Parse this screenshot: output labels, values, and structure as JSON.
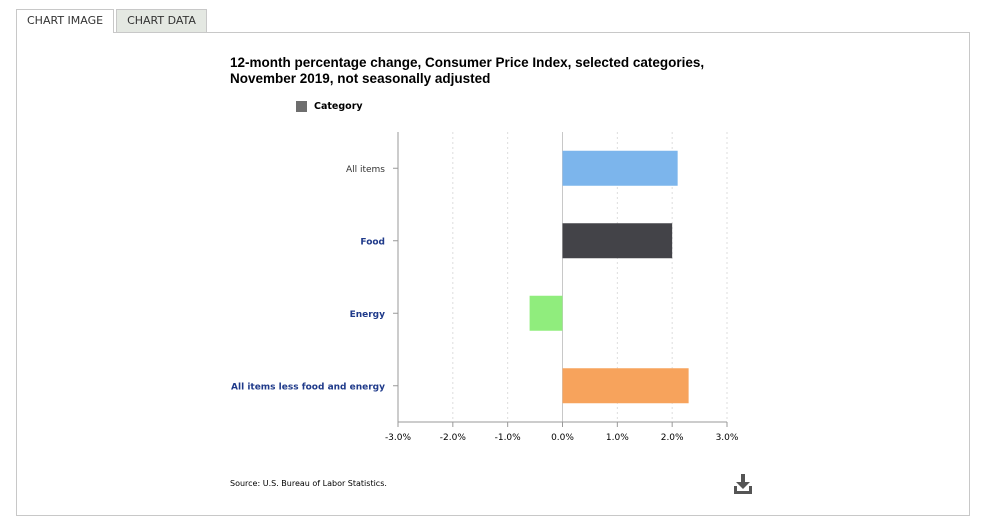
{
  "tabs": [
    {
      "label": "CHART IMAGE"
    },
    {
      "label": "CHART DATA"
    }
  ],
  "source": "Source: U.S. Bureau of Labor Statistics.",
  "legend": {
    "label": "Category",
    "color": "#6e6e6e"
  },
  "chart_data": {
    "type": "bar",
    "orientation": "horizontal",
    "title": "12-month percentage change, Consumer Price Index, selected categories, November 2019, not seasonally adjusted",
    "categories": [
      "All items",
      "Food",
      "Energy",
      "All items less food and energy"
    ],
    "category_colors": [
      "#7cb5ec",
      "#434348",
      "#90ed7d",
      "#f7a35c"
    ],
    "category_label_colors": [
      "#333333",
      "#1f3a8a",
      "#1f3a8a",
      "#1f3a8a"
    ],
    "series": [
      {
        "name": "Category",
        "values": [
          2.1,
          2.0,
          -0.6,
          2.3
        ]
      }
    ],
    "xlim": [
      -3.0,
      3.0
    ],
    "ticks": [
      "-3.0%",
      "-2.0%",
      "-1.0%",
      "0.0%",
      "1.0%",
      "2.0%",
      "3.0%"
    ],
    "tick_values": [
      -3.0,
      -2.0,
      -1.0,
      0.0,
      1.0,
      2.0,
      3.0
    ],
    "grid": true,
    "legend_position": "top-left"
  }
}
